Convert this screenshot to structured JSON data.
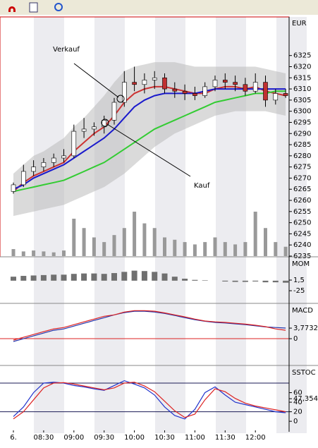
{
  "chart_data": [
    {
      "type": "candlestick",
      "title": "EUR",
      "categories": [
        "6.",
        null,
        null,
        "08:30",
        null,
        null,
        "09:00",
        null,
        null,
        "09:30",
        null,
        null,
        "10:00",
        null,
        null,
        "10:30",
        null,
        null,
        "11:00",
        null,
        null,
        "11:30",
        null,
        null,
        "12:00",
        null,
        null,
        null
      ],
      "open": [
        6264,
        6267,
        6273,
        6275,
        6277,
        6279,
        6280,
        6291,
        6292,
        6293,
        6296,
        6304,
        6313,
        6312,
        6314,
        6315,
        6310,
        6309,
        6308,
        6307,
        6311,
        6314,
        6313,
        6312,
        6309,
        6313,
        6305,
        6308
      ],
      "high": [
        6268,
        6276,
        6278,
        6279,
        6281,
        6283,
        6294,
        6297,
        6295,
        6298,
        6306,
        6318,
        6320,
        6317,
        6318,
        6317,
        6313,
        6312,
        6311,
        6313,
        6316,
        6317,
        6316,
        6315,
        6317,
        6316,
        6310,
        6310
      ],
      "low": [
        6263,
        6266,
        6271,
        6273,
        6275,
        6277,
        6279,
        6288,
        6289,
        6290,
        6294,
        6302,
        6309,
        6308,
        6310,
        6308,
        6306,
        6305,
        6305,
        6306,
        6309,
        6310,
        6309,
        6307,
        6308,
        6302,
        6303,
        6306
      ],
      "close": [
        6267,
        6273,
        6275,
        6277,
        6279,
        6280,
        6291,
        6292,
        6293,
        6296,
        6304,
        6313,
        6312,
        6314,
        6315,
        6310,
        6309,
        6308,
        6307,
        6311,
        6314,
        6313,
        6312,
        6309,
        6313,
        6305,
        6308,
        6307
      ],
      "band_upper": [
        6272,
        6276,
        6280,
        6282,
        6285,
        6288,
        6293,
        6297,
        6302,
        6307,
        6313,
        6318,
        6320,
        6321,
        6322,
        6322,
        6322,
        6321,
        6320,
        6320,
        6320,
        6320,
        6320,
        6320,
        6320,
        6319,
        6318,
        6317
      ],
      "band_lower": [
        6253,
        6254,
        6255,
        6256,
        6257,
        6258,
        6260,
        6262,
        6264,
        6266,
        6269,
        6272,
        6276,
        6280,
        6284,
        6287,
        6290,
        6292,
        6294,
        6296,
        6298,
        6299,
        6300,
        6300,
        6300,
        6300,
        6299,
        6298
      ],
      "series": [
        {
          "color": "#cc3333",
          "values": [
            6264,
            6268,
            6271,
            6273,
            6275,
            6277,
            6282,
            6286,
            6290,
            6293,
            6298,
            6304,
            6308,
            6310,
            6311,
            6311,
            6310,
            6309,
            6308,
            6308,
            6310,
            6311,
            6311,
            6310,
            6311,
            6309,
            6308,
            6307
          ]
        },
        {
          "color": "#1a1acc",
          "values": [
            6265,
            6267,
            6270,
            6272,
            6274,
            6276,
            6279,
            6282,
            6285,
            6288,
            6292,
            6297,
            6302,
            6305,
            6307,
            6308,
            6308,
            6308,
            6308,
            6309,
            6310,
            6310,
            6310,
            6310,
            6310,
            6310,
            6310,
            6310
          ]
        },
        {
          "color": "#33cc33",
          "values": [
            6264,
            6265,
            6266,
            6267,
            6268,
            6269,
            6271,
            6273,
            6275,
            6277,
            6280,
            6283,
            6286,
            6289,
            6292,
            6294,
            6296,
            6298,
            6300,
            6302,
            6304,
            6305,
            6306,
            6307,
            6308,
            6308,
            6309,
            6309
          ]
        }
      ],
      "volume": {
        "color": "#999999",
        "axis": "y2",
        "values": [
          15,
          10,
          12,
          10,
          8,
          12,
          80,
          60,
          40,
          30,
          45,
          60,
          95,
          70,
          60,
          40,
          35,
          30,
          25,
          30,
          40,
          30,
          25,
          30,
          95,
          60,
          30,
          20
        ]
      },
      "annotations": [
        "Verkauf",
        "Kauf"
      ],
      "ylim": [
        6235,
        6342
      ],
      "yticks": [
        6235,
        6240,
        6245,
        6250,
        6255,
        6260,
        6265,
        6270,
        6275,
        6280,
        6285,
        6290,
        6295,
        6300,
        6305,
        6310,
        6315,
        6320,
        6325
      ],
      "y2lim": [
        0,
        510
      ]
    },
    {
      "type": "bar",
      "title": "MOM",
      "color": "#707070",
      "values": [
        10,
        12,
        13,
        14,
        15,
        15,
        17,
        18,
        18,
        17,
        19,
        22,
        25,
        24,
        22,
        18,
        10,
        5,
        2,
        1,
        0,
        -2,
        -3,
        -3,
        -2,
        -4,
        -4,
        -5
      ],
      "ylim": [
        -53,
        56
      ],
      "yticks": [
        {
          "value": 1.5,
          "label": "1,5"
        },
        -25
      ]
    },
    {
      "type": "line",
      "title": "MACD",
      "series": [
        {
          "color": "#2233aa",
          "values": [
            -1,
            0,
            1,
            2,
            3,
            3.5,
            4.5,
            5.5,
            6.5,
            7.5,
            8.5,
            9.3,
            9.8,
            9.8,
            9.5,
            9,
            8.3,
            7.5,
            6.8,
            6.2,
            5.8,
            5.6,
            5.3,
            5,
            4.6,
            4.2,
            4,
            3.8
          ]
        },
        {
          "color": "#dd2222",
          "values": [
            -0.5,
            0.5,
            1.5,
            2.5,
            3.5,
            4,
            5,
            6,
            7,
            8,
            8.5,
            9.5,
            10,
            10,
            9.8,
            9.2,
            8.5,
            7.8,
            7,
            6.3,
            6,
            5.8,
            5.5,
            5.2,
            4.8,
            4.3,
            3.5,
            3
          ]
        }
      ],
      "hlines": [
        0
      ],
      "hline_color": "#dd2222",
      "ylim": [
        -9.3,
        12.1
      ],
      "yticks": [
        {
          "value": 3.7732,
          "label": "3,7732"
        },
        0
      ]
    },
    {
      "type": "line",
      "title": "SSTOC",
      "series": [
        {
          "color": "#2233cc",
          "values": [
            10,
            30,
            60,
            80,
            82,
            80,
            75,
            72,
            68,
            65,
            75,
            85,
            78,
            70,
            55,
            30,
            12,
            5,
            25,
            60,
            72,
            55,
            40,
            35,
            30,
            25,
            20,
            18
          ]
        },
        {
          "color": "#dd2222",
          "values": [
            5,
            20,
            45,
            70,
            80,
            81,
            78,
            74,
            70,
            66,
            70,
            80,
            82,
            74,
            62,
            42,
            22,
            8,
            15,
            45,
            68,
            62,
            48,
            38,
            32,
            28,
            24,
            20
          ]
        }
      ],
      "hlines": [
        80,
        20
      ],
      "hline_color": "#1a1a55",
      "ylim": [
        -19,
        114
      ],
      "yticks": [
        60,
        {
          "value": 47.354,
          "label": "47,354"
        },
        40,
        20,
        0
      ]
    }
  ]
}
